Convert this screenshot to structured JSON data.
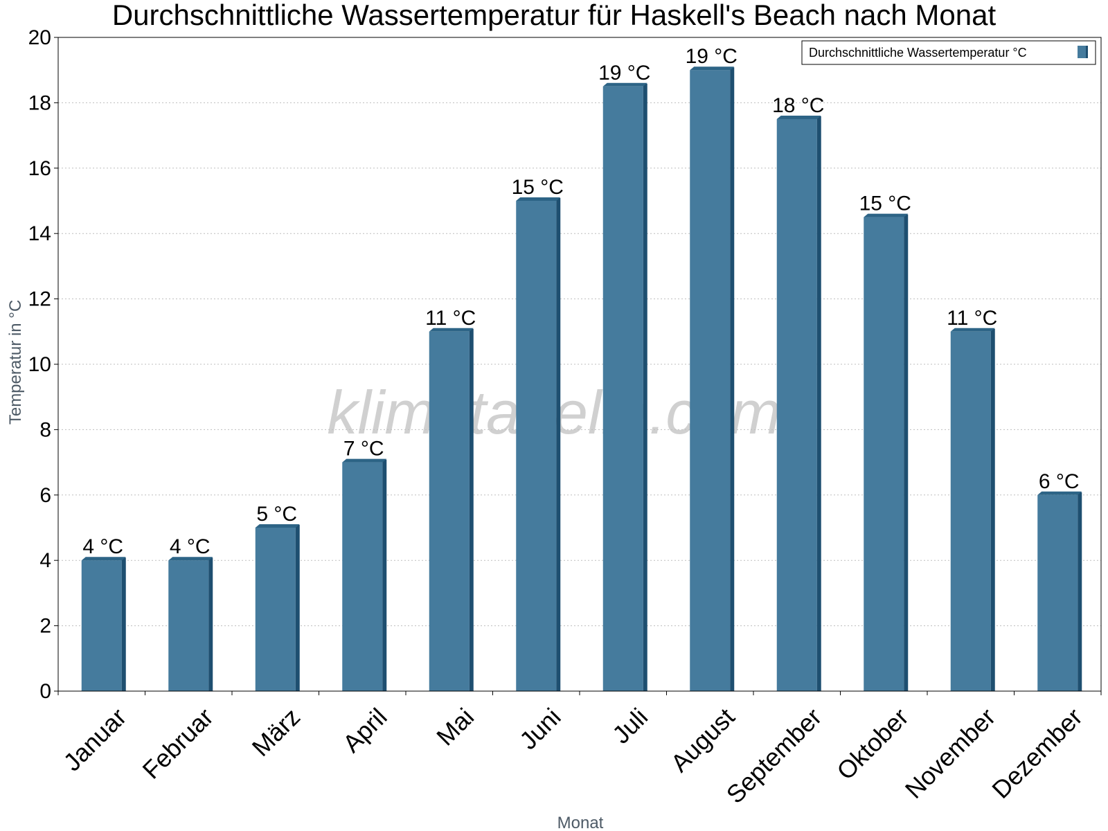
{
  "chart_data": {
    "type": "bar",
    "title": "Durchschnittliche Wassertemperatur für Haskell's Beach nach Monat",
    "xlabel": "Monat",
    "ylabel": "Temperatur in °C",
    "categories": [
      "Januar",
      "Februar",
      "März",
      "April",
      "Mai",
      "Juni",
      "Juli",
      "August",
      "September",
      "Oktober",
      "November",
      "Dezember"
    ],
    "series": [
      {
        "name": "Durchschnittliche Wassertemperatur °C",
        "values": [
          4,
          4,
          5,
          7,
          11,
          15,
          18.5,
          19,
          17.5,
          14.5,
          11,
          6
        ],
        "labels": [
          "4 °C",
          "4 °C",
          "5 °C",
          "7 °C",
          "11 °C",
          "15 °C",
          "19 °C",
          "19 °C",
          "18 °C",
          "15 °C",
          "11 °C",
          "6 °C"
        ]
      }
    ],
    "ylim": [
      0,
      20
    ],
    "yticks": [
      0,
      2,
      4,
      6,
      8,
      10,
      12,
      14,
      16,
      18,
      20
    ],
    "grid": true,
    "legend_position": "top-right",
    "colors": {
      "bar": "#457b9d",
      "bar_side": "#1e4f70",
      "bar_top": "#2d6486"
    }
  },
  "watermark": "klimatabelle.com"
}
